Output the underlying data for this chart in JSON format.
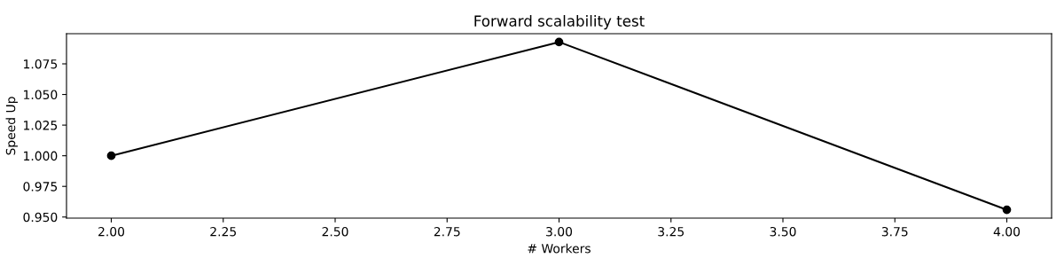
{
  "chart_data": {
    "type": "line",
    "title": "Forward scalability test",
    "xlabel": "# Workers",
    "ylabel": "Speed Up",
    "x": [
      2,
      3,
      4
    ],
    "series": [
      {
        "color": "#000000",
        "values": [
          1.0,
          1.0928,
          0.9559
        ]
      }
    ],
    "marker": "circle",
    "line_style": "solid",
    "grid": false,
    "xlim": [
      1.9,
      4.1
    ],
    "xticks": [
      {
        "value": 2,
        "label": "2.00"
      },
      {
        "value": 2.25,
        "label": "2.25"
      },
      {
        "value": 2.5,
        "label": "2.50"
      },
      {
        "value": 2.75,
        "label": "2.75"
      },
      {
        "value": 3,
        "label": "3.00"
      },
      {
        "value": 3.25,
        "label": "3.25"
      },
      {
        "value": 3.5,
        "label": "3.50"
      },
      {
        "value": 3.75,
        "label": "3.75"
      },
      {
        "value": 4,
        "label": "4.00"
      }
    ],
    "ylim": [
      0.9491,
      1.0996
    ],
    "yticks": [
      {
        "value": 0.95,
        "label": "0.950"
      },
      {
        "value": 0.975,
        "label": "0.975"
      },
      {
        "value": 1.0,
        "label": "1.000"
      },
      {
        "value": 1.025,
        "label": "1.025"
      },
      {
        "value": 1.05,
        "label": "1.050"
      },
      {
        "value": 1.075,
        "label": "1.075"
      }
    ]
  }
}
